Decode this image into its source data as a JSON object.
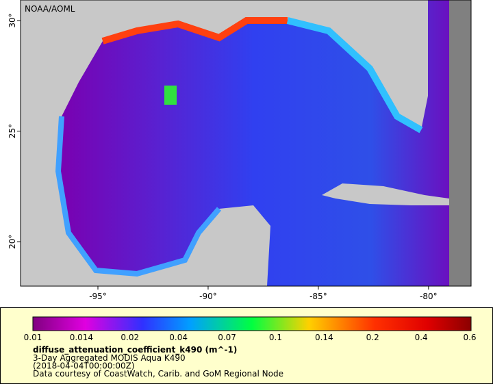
{
  "map": {
    "credit": "NOAA/AOML",
    "xlim": [
      -98.51,
      -78.07
    ],
    "ylim": [
      17.99,
      30.93
    ],
    "xticks": [
      {
        "value": -95,
        "label": "-95°"
      },
      {
        "value": -90,
        "label": "-90°"
      },
      {
        "value": -85,
        "label": "-85°"
      },
      {
        "value": -80,
        "label": "-80°"
      }
    ],
    "yticks": [
      {
        "value": 20,
        "label": "20°"
      },
      {
        "value": 25,
        "label": "25°"
      },
      {
        "value": 30,
        "label": "30°"
      }
    ]
  },
  "legend": {
    "colorbar_labels": [
      "0.01",
      "0.014",
      "0.02",
      "0.04",
      "0.07",
      "0.1",
      "0.14",
      "0.2",
      "0.4",
      "0.6"
    ],
    "variable": "diffuse_attenuation_coefficient_k490 (m^-1)",
    "lines": [
      "3-Day Aggregated MODIS Aqua K490",
      "(2018-04-04T00:00:00Z)",
      "Data courtesy of CoastWatch, Carib. and GoM Regional Node"
    ]
  }
}
